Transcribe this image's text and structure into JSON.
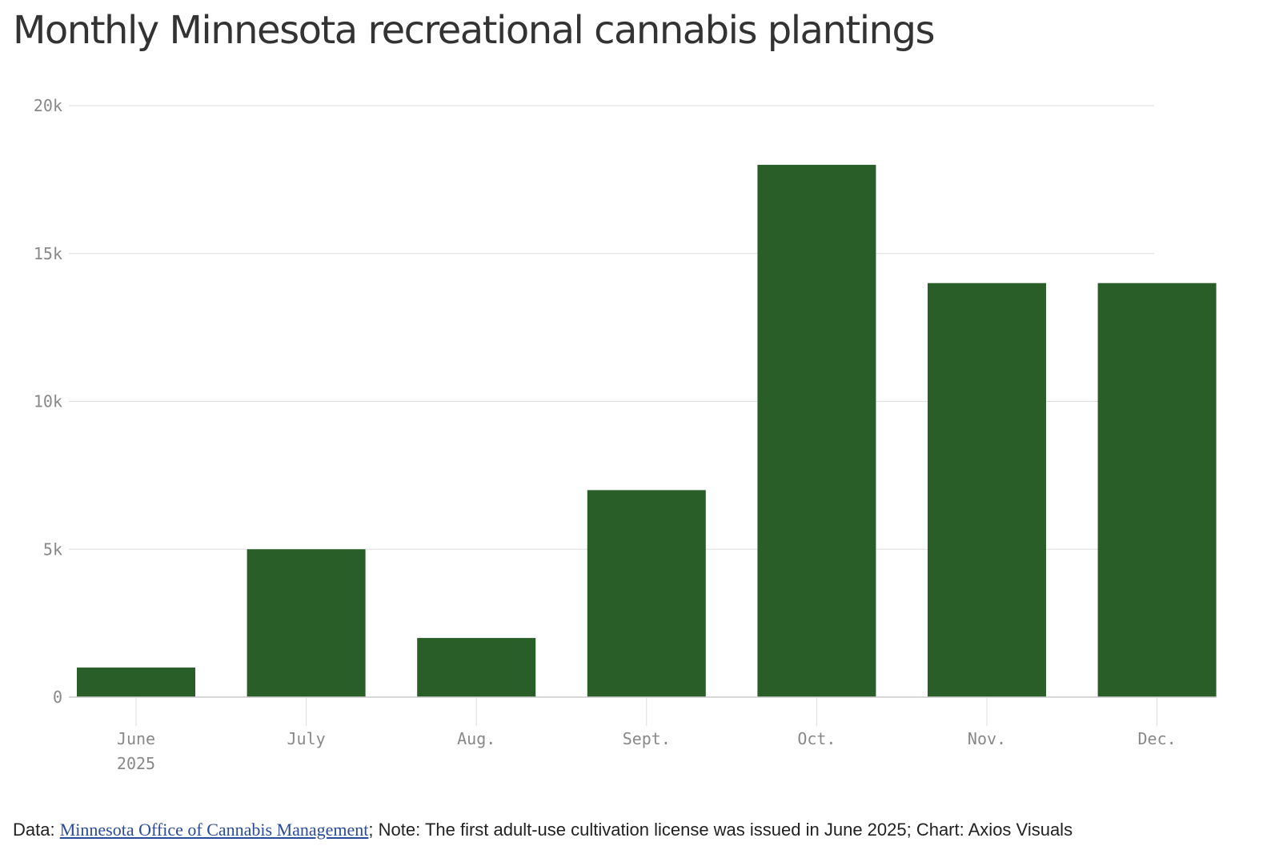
{
  "title": "Monthly Minnesota recreational cannabis plantings",
  "chart_data": {
    "type": "bar",
    "title": "Monthly Minnesota recreational cannabis plantings",
    "categories": [
      "June",
      "July",
      "Aug.",
      "Sept.",
      "Oct.",
      "Nov.",
      "Dec."
    ],
    "category_sublabels": [
      "2025",
      "",
      "",
      "",
      "",
      "",
      ""
    ],
    "values": [
      1000,
      5000,
      2000,
      7000,
      18000,
      14000,
      14000
    ],
    "ylim": [
      0,
      20000
    ],
    "yticks": [
      0,
      5000,
      10000,
      15000,
      20000
    ],
    "ytick_labels": [
      "0",
      "5k",
      "10k",
      "15k",
      "20k"
    ],
    "xlabel": "",
    "ylabel": "",
    "grid": true,
    "bar_color": "#2a5e29"
  },
  "footer": {
    "data_prefix": "Data: ",
    "source_link": "Minnesota Office of Cannabis Management",
    "note": "; Note: The first adult-use cultivation license was issued in June 2025; Chart: Axios Visuals"
  },
  "colors": {
    "bar": "#2a5e29",
    "grid": "#dddddd",
    "axis": "#cccccc",
    "tick_text": "#888888",
    "title_text": "#333333",
    "link": "#2a4a9a"
  }
}
